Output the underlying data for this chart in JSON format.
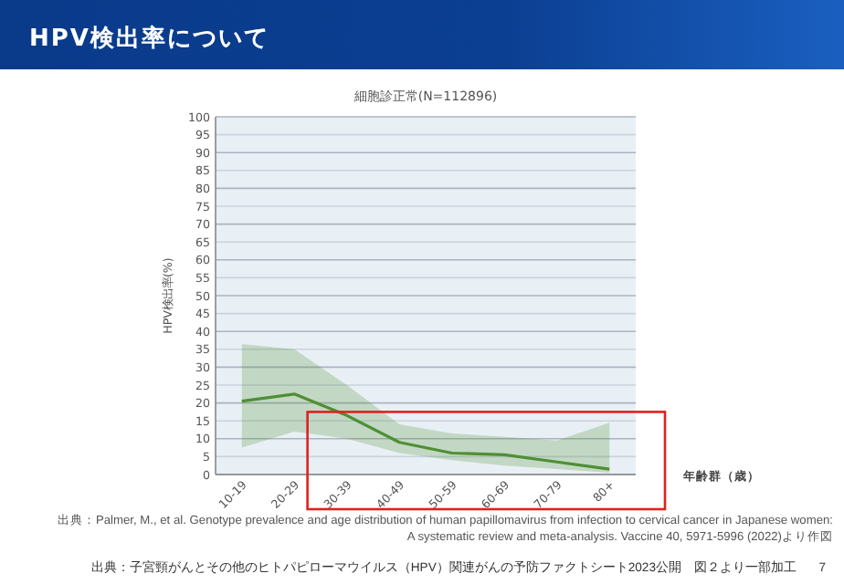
{
  "chart_data": {
    "type": "line",
    "title": "HPV検出率について",
    "subtitle": "細胞診正常(N=112896)",
    "ylabel": "HPV検出率(%)",
    "xlabel": "年齢群（歳）",
    "categories": [
      "10-19",
      "20-29",
      "30-39",
      "40-49",
      "50-59",
      "60-69",
      "70-79",
      "80+"
    ],
    "series": [
      {
        "color": "#4f8f34",
        "values": [
          20.5,
          22.5,
          16.5,
          9,
          6,
          5.5,
          3.5,
          1.5
        ],
        "lower": [
          7.5,
          12,
          10,
          6,
          4,
          2.5,
          1.5,
          0.5
        ],
        "upper": [
          36.5,
          35,
          25,
          14,
          11.5,
          10.5,
          9.5,
          14.5
        ]
      }
    ],
    "ylim": [
      0,
      100
    ],
    "yticks": [
      0,
      5,
      10,
      15,
      20,
      25,
      30,
      35,
      40,
      45,
      50,
      55,
      60,
      65,
      70,
      75,
      80,
      85,
      90,
      95,
      100
    ],
    "grid": "y",
    "marker": "none",
    "line_style": "solid",
    "annotations": [
      "出典：Palmer, M., et al. Genotype prevalence and age distribution of human papillomavirus from infection to cervical cancer in Japanese women:",
      "A systematic review and meta-analysis. Vaccine 40, 5971-5996 (2022)より作図",
      "出典：子宮頸がんとその他のヒトパピローマウイルス（HPV）関連がんの予防ファクトシート2023公開　図２より一部加工",
      "7"
    ]
  }
}
